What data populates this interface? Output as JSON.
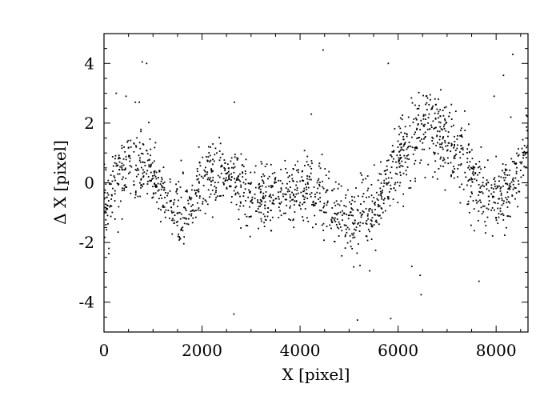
{
  "chart_data": {
    "type": "scatter",
    "title": "",
    "xlabel": "X [pixel]",
    "ylabel": "Δ X [pixel]",
    "xlim": [
      0,
      8650
    ],
    "ylim": [
      -5,
      5
    ],
    "xticks": [
      0,
      2000,
      4000,
      6000,
      8000
    ],
    "xtick_labels": [
      "0",
      "2000",
      "4000",
      "6000",
      "8000"
    ],
    "yticks": [
      -4,
      -2,
      0,
      2,
      4
    ],
    "ytick_labels": [
      "-4",
      "-2",
      "0",
      "2",
      "4"
    ],
    "grid": false,
    "legend": "none",
    "point_color": "#000000",
    "trend_x": [
      0,
      200,
      500,
      800,
      1000,
      1200,
      1400,
      1600,
      1800,
      2000,
      2200,
      2400,
      2600,
      2800,
      3000,
      3200,
      3400,
      3600,
      3800,
      4000,
      4200,
      4400,
      4600,
      4800,
      5000,
      5200,
      5400,
      5600,
      5800,
      6000,
      6200,
      6400,
      6600,
      6800,
      7000,
      7200,
      7400,
      7600,
      7800,
      8000,
      8200,
      8400,
      8650
    ],
    "trend_y": [
      -0.9,
      0.0,
      0.6,
      0.5,
      0.2,
      -0.3,
      -0.9,
      -1.0,
      -0.6,
      -0.1,
      0.2,
      0.3,
      0.1,
      -0.2,
      -0.5,
      -0.6,
      -0.6,
      -0.5,
      -0.4,
      -0.2,
      -0.1,
      -0.3,
      -0.8,
      -1.1,
      -1.3,
      -1.2,
      -1.0,
      -0.5,
      0.1,
      0.8,
      1.3,
      1.6,
      1.8,
      1.7,
      1.4,
      1.0,
      0.5,
      0.0,
      -0.5,
      -0.7,
      -0.3,
      0.3,
      1.2
    ],
    "outliers": [
      {
        "x": 450,
        "y": 2.9
      },
      {
        "x": 780,
        "y": 4.05
      },
      {
        "x": 870,
        "y": 4.0
      },
      {
        "x": 640,
        "y": 2.7
      },
      {
        "x": 720,
        "y": 2.7
      },
      {
        "x": 2660,
        "y": 2.7
      },
      {
        "x": 2650,
        "y": -4.4
      },
      {
        "x": 4470,
        "y": 4.45
      },
      {
        "x": 4230,
        "y": 2.3
      },
      {
        "x": 5170,
        "y": -4.6
      },
      {
        "x": 5420,
        "y": -2.95
      },
      {
        "x": 5800,
        "y": 4.0
      },
      {
        "x": 5850,
        "y": -4.55
      },
      {
        "x": 6280,
        "y": -2.8
      },
      {
        "x": 6450,
        "y": -3.1
      },
      {
        "x": 6470,
        "y": -3.75
      },
      {
        "x": 7650,
        "y": -3.3
      },
      {
        "x": 7960,
        "y": 2.9
      },
      {
        "x": 8150,
        "y": 3.6
      },
      {
        "x": 8340,
        "y": 4.3
      },
      {
        "x": 8300,
        "y": 2.2
      },
      {
        "x": 100,
        "y": -2.2
      },
      {
        "x": 250,
        "y": 3.0
      }
    ]
  }
}
